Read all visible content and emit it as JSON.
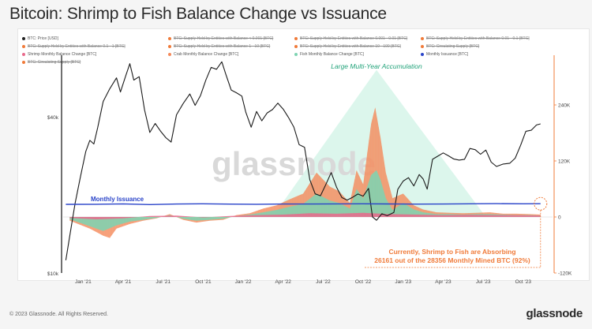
{
  "title": "Bitcoin: Shrimp to Fish Balance Change vs Issuance",
  "legend": [
    {
      "label": "BTC: Price [USD]",
      "color": "#222222",
      "struck": false
    },
    {
      "label": "BTC: Supply Held by Entities with Balance < 0.001 [BTC]",
      "color": "#f07b3a",
      "struck": true
    },
    {
      "label": "BTC: Supply Held by Entities with Balance 0.001 - 0.01 [BTC]",
      "color": "#f07b3a",
      "struck": true
    },
    {
      "label": "BTC: Supply Held by Entities with Balance 0.01 - 0.1 [BTC]",
      "color": "#f07b3a",
      "struck": true
    },
    {
      "label": "BTC: Supply Held by Entities with Balance 0.1 - 1 [BTC]",
      "color": "#f07b3a",
      "struck": true
    },
    {
      "label": "BTC: Supply Held by Entities with Balance 1 - 10 [BTC]",
      "color": "#f07b3a",
      "struck": true
    },
    {
      "label": "BTC: Supply Held by Entities with Balance 10 - 100 [BTC]",
      "color": "#f07b3a",
      "struck": true
    },
    {
      "label": "BTC: Circulating Supply [BTC]",
      "color": "#f07b3a",
      "struck": true
    },
    {
      "label": "Shrimp Monthly Balance Change [BTC]",
      "color": "#e86a8c",
      "struck": false
    },
    {
      "label": "Crab Monthly Balance Change [BTC]",
      "color": "#f5895a",
      "struck": false
    },
    {
      "label": "Fish Monthly Balance Change [BTC]",
      "color": "#7ed3b2",
      "struck": false
    },
    {
      "label": "Monthly Issuance [BTC]",
      "color": "#2a44c9",
      "struck": false
    },
    {
      "label": "BTC: Circulating Supply [BTC]",
      "color": "#f07b3a",
      "struck": true
    }
  ],
  "annotations": {
    "accumulation": "Large Multi-Year Accumulation",
    "issuance": "Monthly Issuance",
    "callout_line1": "Currently, Shrimp to Fish are Absorbing",
    "callout_line2": "26161 out of the 28356 Monthly Mined BTC (92%)"
  },
  "watermark": "glassnode",
  "footer": {
    "copyright": "© 2023 Glassnode. All Rights Reserved.",
    "brand": "glassnode"
  },
  "colors": {
    "shrimp": "#e86a8c",
    "crab": "#f5895a",
    "fish": "#7ed3b2",
    "issuance": "#2a44c9",
    "price": "#1a1a1a",
    "accent": "#f07b3a",
    "triangle": "#bfeedd"
  },
  "chart_data": {
    "type": "line",
    "title": "Bitcoin: Shrimp to Fish Balance Change vs Issuance",
    "x_ticks": [
      "Jan '21",
      "Apr '21",
      "Jul '21",
      "Oct '21",
      "Jan '22",
      "Apr '22",
      "Jul '22",
      "Oct '22",
      "Jan '23",
      "Apr '23",
      "Jul '23",
      "Oct '23"
    ],
    "x_tick_months": [
      0,
      3,
      6,
      9,
      12,
      15,
      18,
      21,
      24,
      27,
      30,
      33
    ],
    "y_left": {
      "scale": "log",
      "ticks": [
        {
          "label": "$40k",
          "value": 40000
        },
        {
          "label": "$10k",
          "value": 10000
        }
      ],
      "range": [
        10000,
        73000
      ]
    },
    "y_right": {
      "ticks": [
        {
          "label": "240K",
          "value": 240000
        },
        {
          "label": "120K",
          "value": 120000
        },
        {
          "label": "0",
          "value": 0
        },
        {
          "label": "-120K",
          "value": -120000
        }
      ],
      "range": [
        -120000,
        360000
      ]
    },
    "x_range_months": [
      -1.5,
      35.2
    ],
    "series": [
      {
        "name": "BTC: Price [USD]",
        "axis": "left",
        "points": [
          [
            -1.3,
            11200
          ],
          [
            -1.0,
            13500
          ],
          [
            -0.6,
            18500
          ],
          [
            -0.2,
            23500
          ],
          [
            0.2,
            29500
          ],
          [
            0.5,
            33500
          ],
          [
            0.8,
            31500
          ],
          [
            1.1,
            35500
          ],
          [
            1.5,
            45500
          ],
          [
            2.0,
            51000
          ],
          [
            2.5,
            56500
          ],
          [
            2.8,
            51500
          ],
          [
            3.2,
            58000
          ],
          [
            3.5,
            62500
          ],
          [
            3.8,
            55000
          ],
          [
            4.2,
            56500
          ],
          [
            4.6,
            42500
          ],
          [
            5.0,
            36000
          ],
          [
            5.4,
            38000
          ],
          [
            5.8,
            34500
          ],
          [
            6.2,
            33000
          ],
          [
            6.6,
            31500
          ],
          [
            7.0,
            40500
          ],
          [
            7.5,
            46500
          ],
          [
            8.0,
            49500
          ],
          [
            8.4,
            43500
          ],
          [
            8.8,
            48000
          ],
          [
            9.2,
            54500
          ],
          [
            9.6,
            61500
          ],
          [
            10.0,
            63000
          ],
          [
            10.4,
            66000
          ],
          [
            10.7,
            57500
          ],
          [
            11.1,
            50500
          ],
          [
            11.5,
            48500
          ],
          [
            11.9,
            47500
          ],
          [
            12.2,
            43000
          ],
          [
            12.6,
            37000
          ],
          [
            13.0,
            41500
          ],
          [
            13.4,
            38500
          ],
          [
            13.8,
            40500
          ],
          [
            14.2,
            42000
          ],
          [
            14.6,
            46500
          ],
          [
            15.0,
            43500
          ],
          [
            15.4,
            39500
          ],
          [
            15.8,
            36500
          ],
          [
            16.2,
            30500
          ],
          [
            16.6,
            30000
          ],
          [
            17.0,
            23500
          ],
          [
            17.4,
            20500
          ],
          [
            17.8,
            19800
          ],
          [
            18.2,
            22000
          ],
          [
            18.6,
            23800
          ],
          [
            19.0,
            21000
          ],
          [
            19.4,
            20000
          ],
          [
            19.8,
            19400
          ],
          [
            20.2,
            19600
          ],
          [
            20.6,
            20300
          ],
          [
            21.0,
            19300
          ],
          [
            21.4,
            20700
          ],
          [
            21.7,
            16800
          ],
          [
            22.0,
            16200
          ],
          [
            22.4,
            17000
          ],
          [
            22.8,
            16800
          ],
          [
            23.3,
            16700
          ],
          [
            23.6,
            20500
          ],
          [
            24.0,
            23000
          ],
          [
            24.4,
            23600
          ],
          [
            24.8,
            21800
          ],
          [
            25.2,
            24300
          ],
          [
            25.5,
            22500
          ],
          [
            25.8,
            20500
          ],
          [
            26.2,
            27800
          ],
          [
            26.6,
            28500
          ],
          [
            27.0,
            29300
          ],
          [
            27.4,
            28800
          ],
          [
            27.8,
            26900
          ],
          [
            28.2,
            26500
          ],
          [
            28.6,
            27700
          ],
          [
            29.0,
            30400
          ],
          [
            29.4,
            30200
          ],
          [
            29.8,
            29300
          ],
          [
            30.2,
            29200
          ],
          [
            30.6,
            26000
          ],
          [
            31.0,
            25900
          ],
          [
            31.5,
            26400
          ],
          [
            32.0,
            26800
          ],
          [
            32.4,
            28400
          ],
          [
            32.8,
            30500
          ],
          [
            33.2,
            34200
          ],
          [
            33.6,
            35600
          ],
          [
            34.0,
            37200
          ],
          [
            34.3,
            38000
          ]
        ]
      },
      {
        "name": "Monthly Issuance [BTC]",
        "axis": "right",
        "points": [
          [
            -1.3,
            27000
          ],
          [
            1,
            27200
          ],
          [
            3,
            28000
          ],
          [
            5,
            26500
          ],
          [
            7,
            27800
          ],
          [
            9,
            28200
          ],
          [
            11,
            27500
          ],
          [
            13,
            27200
          ],
          [
            15,
            27700
          ],
          [
            17,
            27800
          ],
          [
            19,
            28000
          ],
          [
            21,
            28200
          ],
          [
            23,
            27900
          ],
          [
            25,
            27600
          ],
          [
            27,
            27800
          ],
          [
            29,
            28300
          ],
          [
            31,
            28500
          ],
          [
            33,
            28300
          ],
          [
            34.3,
            28356
          ]
        ]
      },
      {
        "name": "Fish Monthly Balance Change [BTC]",
        "axis": "right",
        "points": [
          [
            -1.0,
            -5000
          ],
          [
            0.5,
            -20000
          ],
          [
            1.5,
            -30000
          ],
          [
            2.5,
            -18000
          ],
          [
            3.5,
            -10000
          ],
          [
            4.5,
            -6000
          ],
          [
            5.5,
            -2000
          ],
          [
            6.5,
            4000
          ],
          [
            7.5,
            -4000
          ],
          [
            8.5,
            -8000
          ],
          [
            9.5,
            -6000
          ],
          [
            10.5,
            -4000
          ],
          [
            11.5,
            2000
          ],
          [
            12.5,
            5000
          ],
          [
            13.5,
            10000
          ],
          [
            14.5,
            15000
          ],
          [
            15.5,
            22000
          ],
          [
            16.5,
            28000
          ],
          [
            17.5,
            50000
          ],
          [
            18.5,
            35000
          ],
          [
            19.2,
            30000
          ],
          [
            20.0,
            18000
          ],
          [
            20.5,
            60000
          ],
          [
            21.0,
            40000
          ],
          [
            21.6,
            90000
          ],
          [
            22.0,
            100000
          ],
          [
            22.3,
            80000
          ],
          [
            22.7,
            40000
          ],
          [
            23.2,
            15000
          ],
          [
            24.0,
            30000
          ],
          [
            24.8,
            16000
          ],
          [
            25.5,
            10000
          ],
          [
            26.5,
            6000
          ],
          [
            27.5,
            6000
          ],
          [
            28.5,
            5000
          ],
          [
            29.5,
            6000
          ],
          [
            30.5,
            6000
          ],
          [
            31.5,
            5000
          ],
          [
            32.5,
            4000
          ],
          [
            33.5,
            4000
          ],
          [
            34.3,
            3000
          ]
        ]
      },
      {
        "name": "Crab Monthly Balance Change [BTC]",
        "axis": "right",
        "points": [
          [
            -1.0,
            -8000
          ],
          [
            0.5,
            -25000
          ],
          [
            1.5,
            -40000
          ],
          [
            2.0,
            -45000
          ],
          [
            2.5,
            -25000
          ],
          [
            3.5,
            -15000
          ],
          [
            4.5,
            -8000
          ],
          [
            5.5,
            -3000
          ],
          [
            6.5,
            6000
          ],
          [
            7.5,
            -6000
          ],
          [
            8.5,
            -12000
          ],
          [
            9.5,
            -8000
          ],
          [
            10.5,
            -6000
          ],
          [
            11.5,
            4000
          ],
          [
            12.5,
            8000
          ],
          [
            13.5,
            18000
          ],
          [
            14.5,
            25000
          ],
          [
            15.5,
            38000
          ],
          [
            16.5,
            50000
          ],
          [
            17.5,
            95000
          ],
          [
            18.5,
            65000
          ],
          [
            19.2,
            55000
          ],
          [
            20.0,
            30000
          ],
          [
            20.5,
            100000
          ],
          [
            21.0,
            70000
          ],
          [
            21.6,
            200000
          ],
          [
            21.9,
            235000
          ],
          [
            22.3,
            170000
          ],
          [
            22.7,
            95000
          ],
          [
            23.2,
            40000
          ],
          [
            24.0,
            50000
          ],
          [
            24.8,
            25000
          ],
          [
            25.5,
            16000
          ],
          [
            26.5,
            10000
          ],
          [
            27.5,
            9000
          ],
          [
            28.5,
            8000
          ],
          [
            29.5,
            9000
          ],
          [
            30.5,
            10000
          ],
          [
            31.5,
            7000
          ],
          [
            32.5,
            7000
          ],
          [
            33.5,
            6000
          ],
          [
            34.3,
            5000
          ]
        ]
      },
      {
        "name": "Shrimp Monthly Balance Change [BTC]",
        "axis": "right",
        "points": [
          [
            -1.0,
            -2000
          ],
          [
            1,
            -5000
          ],
          [
            3,
            -3000
          ],
          [
            5,
            2000
          ],
          [
            7,
            3000
          ],
          [
            9,
            -1000
          ],
          [
            11,
            2000
          ],
          [
            13,
            4000
          ],
          [
            15,
            5000
          ],
          [
            17,
            8000
          ],
          [
            19,
            7000
          ],
          [
            21,
            9000
          ],
          [
            23,
            6000
          ],
          [
            25,
            5000
          ],
          [
            27,
            4000
          ],
          [
            29,
            4500
          ],
          [
            31,
            4000
          ],
          [
            33,
            3500
          ],
          [
            34.3,
            3000
          ]
        ]
      }
    ],
    "current_absorbed_btc": 26161,
    "current_monthly_mined_btc": 28356,
    "current_share_pct": 92
  }
}
